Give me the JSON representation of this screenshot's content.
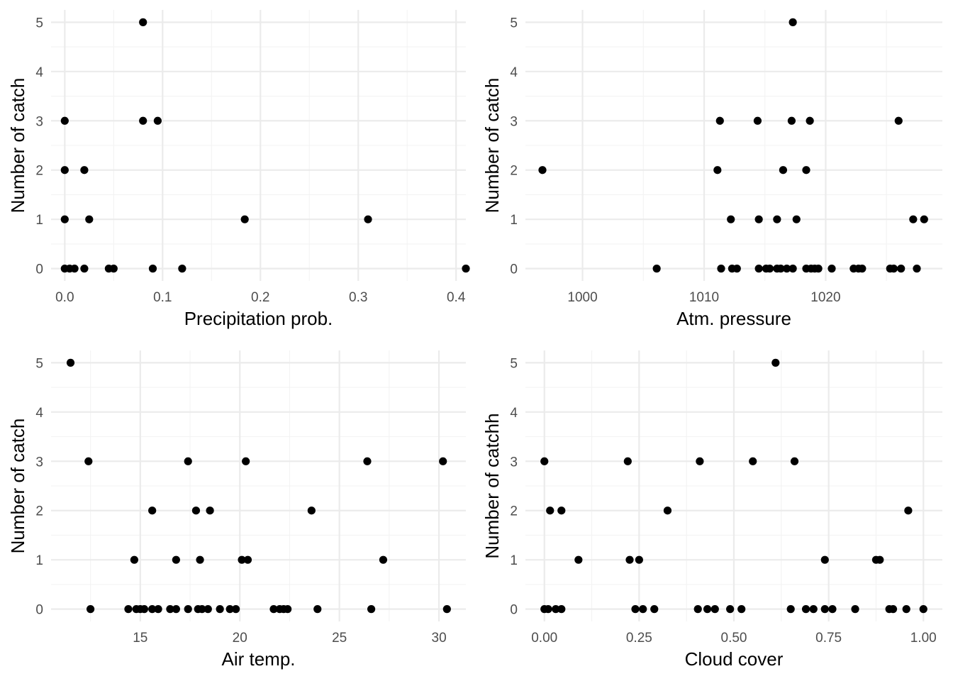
{
  "chart_data": [
    {
      "type": "scatter",
      "xlabel": "Precipitation prob.",
      "ylabel": "Number of catch",
      "xlim": [
        -0.014,
        0.41
      ],
      "ylim": [
        -0.25,
        5.25
      ],
      "xticks": [
        0.0,
        0.1,
        0.2,
        0.3,
        0.4
      ],
      "xtick_labels": [
        "0.0",
        "0.1",
        "0.2",
        "0.3",
        "0.4"
      ],
      "yticks": [
        0,
        1,
        2,
        3,
        4,
        5
      ],
      "ytick_labels": [
        "0",
        "1",
        "2",
        "3",
        "4",
        "5"
      ],
      "grid": true,
      "points": [
        [
          0.08,
          5
        ],
        [
          0.0,
          3
        ],
        [
          0.08,
          3
        ],
        [
          0.095,
          3
        ],
        [
          0.0,
          2
        ],
        [
          0.02,
          2
        ],
        [
          0.0,
          1
        ],
        [
          0.025,
          1
        ],
        [
          0.184,
          1
        ],
        [
          0.31,
          1
        ],
        [
          0.0,
          0
        ],
        [
          0.005,
          0
        ],
        [
          0.01,
          0
        ],
        [
          0.02,
          0
        ],
        [
          0.045,
          0
        ],
        [
          0.05,
          0
        ],
        [
          0.09,
          0
        ],
        [
          0.12,
          0
        ],
        [
          0.41,
          0
        ]
      ]
    },
    {
      "type": "scatter",
      "xlabel": "Atm. pressure",
      "ylabel": "Number of catch",
      "xlim": [
        995.3,
        1029.6
      ],
      "ylim": [
        -0.25,
        5.25
      ],
      "xticks": [
        1000,
        1010,
        1020
      ],
      "xtick_labels": [
        "1000",
        "1010",
        "1020"
      ],
      "yticks": [
        0,
        1,
        2,
        3,
        4,
        5
      ],
      "ytick_labels": [
        "0",
        "1",
        "2",
        "3",
        "4",
        "5"
      ],
      "grid": true,
      "points": [
        [
          1017.3,
          5
        ],
        [
          1011.3,
          3
        ],
        [
          1014.4,
          3
        ],
        [
          1017.2,
          3
        ],
        [
          1018.7,
          3
        ],
        [
          1026.0,
          3
        ],
        [
          996.7,
          2
        ],
        [
          1011.1,
          2
        ],
        [
          1016.5,
          2
        ],
        [
          1018.4,
          2
        ],
        [
          1012.2,
          1
        ],
        [
          1014.5,
          1
        ],
        [
          1016.0,
          1
        ],
        [
          1017.6,
          1
        ],
        [
          1027.2,
          1
        ],
        [
          1028.1,
          1
        ],
        [
          1006.1,
          0
        ],
        [
          1011.4,
          0
        ],
        [
          1012.3,
          0
        ],
        [
          1012.7,
          0
        ],
        [
          1014.5,
          0
        ],
        [
          1015.1,
          0
        ],
        [
          1015.4,
          0
        ],
        [
          1016.0,
          0
        ],
        [
          1016.3,
          0
        ],
        [
          1016.8,
          0
        ],
        [
          1017.3,
          0
        ],
        [
          1018.4,
          0
        ],
        [
          1018.8,
          0
        ],
        [
          1019.1,
          0
        ],
        [
          1019.4,
          0
        ],
        [
          1020.5,
          0
        ],
        [
          1022.3,
          0
        ],
        [
          1022.7,
          0
        ],
        [
          1023.0,
          0
        ],
        [
          1025.3,
          0
        ],
        [
          1025.6,
          0
        ],
        [
          1026.2,
          0
        ],
        [
          1027.5,
          0
        ]
      ]
    },
    {
      "type": "scatter",
      "xlabel": "Air temp.",
      "ylabel": "Number of catch",
      "xlim": [
        10.52,
        31.35
      ],
      "ylim": [
        -0.25,
        5.25
      ],
      "xticks": [
        15,
        20,
        25,
        30
      ],
      "xtick_labels": [
        "15",
        "20",
        "25",
        "30"
      ],
      "yticks": [
        0,
        1,
        2,
        3,
        4,
        5
      ],
      "ytick_labels": [
        "0",
        "1",
        "2",
        "3",
        "4",
        "5"
      ],
      "grid": true,
      "points": [
        [
          11.5,
          5
        ],
        [
          12.4,
          3
        ],
        [
          17.4,
          3
        ],
        [
          20.3,
          3
        ],
        [
          26.4,
          3
        ],
        [
          30.2,
          3
        ],
        [
          15.6,
          2
        ],
        [
          17.8,
          2
        ],
        [
          18.5,
          2
        ],
        [
          23.6,
          2
        ],
        [
          14.7,
          1
        ],
        [
          16.8,
          1
        ],
        [
          18.0,
          1
        ],
        [
          20.1,
          1
        ],
        [
          20.4,
          1
        ],
        [
          27.2,
          1
        ],
        [
          12.5,
          0
        ],
        [
          14.4,
          0
        ],
        [
          14.8,
          0
        ],
        [
          15.0,
          0
        ],
        [
          15.2,
          0
        ],
        [
          15.6,
          0
        ],
        [
          15.9,
          0
        ],
        [
          16.5,
          0
        ],
        [
          16.8,
          0
        ],
        [
          17.4,
          0
        ],
        [
          17.9,
          0
        ],
        [
          18.1,
          0
        ],
        [
          18.4,
          0
        ],
        [
          19.0,
          0
        ],
        [
          19.5,
          0
        ],
        [
          19.8,
          0
        ],
        [
          21.7,
          0
        ],
        [
          22.0,
          0
        ],
        [
          22.2,
          0
        ],
        [
          22.4,
          0
        ],
        [
          23.9,
          0
        ],
        [
          26.6,
          0
        ],
        [
          30.4,
          0
        ]
      ]
    },
    {
      "type": "scatter",
      "xlabel": "Cloud cover",
      "ylabel": "Number of catchh",
      "xlim": [
        -0.05,
        1.05
      ],
      "ylim": [
        -0.25,
        5.25
      ],
      "xticks": [
        0.0,
        0.25,
        0.5,
        0.75,
        1.0
      ],
      "xtick_labels": [
        "0.00",
        "0.25",
        "0.50",
        "0.75",
        "1.00"
      ],
      "yticks": [
        0,
        1,
        2,
        3,
        4,
        5
      ],
      "ytick_labels": [
        "0",
        "1",
        "2",
        "3",
        "4",
        "5"
      ],
      "grid": true,
      "points": [
        [
          0.61,
          5
        ],
        [
          0.0,
          3
        ],
        [
          0.22,
          3
        ],
        [
          0.41,
          3
        ],
        [
          0.55,
          3
        ],
        [
          0.66,
          3
        ],
        [
          0.015,
          2
        ],
        [
          0.045,
          2
        ],
        [
          0.325,
          2
        ],
        [
          0.96,
          2
        ],
        [
          0.09,
          1
        ],
        [
          0.225,
          1
        ],
        [
          0.25,
          1
        ],
        [
          0.74,
          1
        ],
        [
          0.875,
          1
        ],
        [
          0.885,
          1
        ],
        [
          0.0,
          0
        ],
        [
          0.01,
          0
        ],
        [
          0.03,
          0
        ],
        [
          0.045,
          0
        ],
        [
          0.24,
          0
        ],
        [
          0.26,
          0
        ],
        [
          0.29,
          0
        ],
        [
          0.405,
          0
        ],
        [
          0.43,
          0
        ],
        [
          0.45,
          0
        ],
        [
          0.49,
          0
        ],
        [
          0.52,
          0
        ],
        [
          0.65,
          0
        ],
        [
          0.69,
          0
        ],
        [
          0.71,
          0
        ],
        [
          0.74,
          0
        ],
        [
          0.76,
          0
        ],
        [
          0.82,
          0
        ],
        [
          0.91,
          0
        ],
        [
          0.92,
          0
        ],
        [
          0.955,
          0
        ],
        [
          1.0,
          0
        ]
      ]
    }
  ]
}
